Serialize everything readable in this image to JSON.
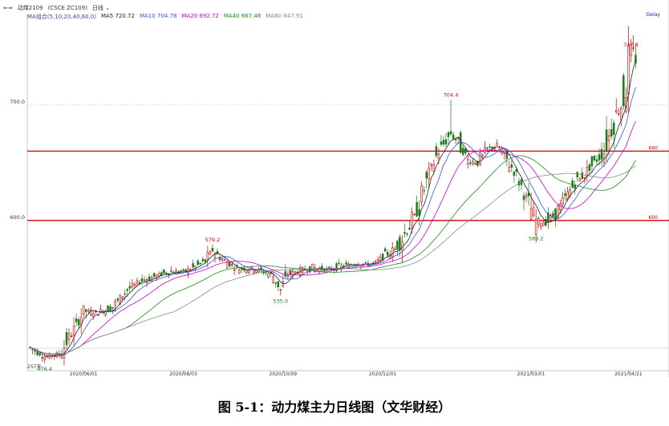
{
  "header": {
    "symbol": "动煤2109",
    "symbol_code": "(CSCE ZC109)",
    "period": "日线",
    "dropdown_icon": "chevron-down-icon"
  },
  "ma_legend": {
    "label": "MA组合(5,10,20,40,60,0)",
    "items": [
      {
        "text": "MA5 720.72",
        "color": "#222222"
      },
      {
        "text": "MA10 704.78",
        "color": "#3355dd"
      },
      {
        "text": "MA20 692.72",
        "color": "#cc00cc"
      },
      {
        "text": "MA40 667.48",
        "color": "#228822"
      },
      {
        "text": "MA60 647.91",
        "color": "#888888"
      }
    ]
  },
  "delay_label": "Delay",
  "bottom_left_label": "257天",
  "caption": "图 5-1：动力煤主力日线图（文华财经）",
  "chart_data": {
    "type": "candlestick",
    "ylim": [
      470,
      770
    ],
    "y_ticks": [
      "700.0",
      "600.0"
    ],
    "y_tick_values": [
      700,
      600
    ],
    "x_tick_labels": [
      "2020/06/01",
      "2020/08/03",
      "2020/10/09",
      "2020/12/01",
      "2021/03/01",
      "2021/04/21"
    ],
    "x_tick_index": [
      22,
      63,
      104,
      145,
      206,
      246
    ],
    "n_bars": 250,
    "hlines": [
      {
        "value": 660,
        "label": "660",
        "color": "#cc0000"
      },
      {
        "value": 600,
        "label": "600",
        "color": "#cc0000"
      }
    ],
    "annotations": [
      {
        "text": "476.4",
        "index": 6,
        "value": 476.4,
        "pos": "below",
        "color": "#1a7a1a"
      },
      {
        "text": "579.2",
        "index": 75,
        "value": 579.2,
        "pos": "above",
        "color": "#cc0000"
      },
      {
        "text": "535.0",
        "index": 103,
        "value": 535.0,
        "pos": "below",
        "color": "#1a7a1a"
      },
      {
        "text": "704.4",
        "index": 173,
        "value": 704.4,
        "pos": "above",
        "color": "#cc0000"
      },
      {
        "text": "589.2",
        "index": 208,
        "value": 589.2,
        "pos": "below",
        "color": "#1a7a1a"
      },
      {
        "text": "747.8",
        "index": 247,
        "value": 747.8,
        "pos": "above",
        "color": "#cc0000"
      }
    ],
    "close_anchors": [
      [
        0,
        490
      ],
      [
        6,
        482
      ],
      [
        12,
        484
      ],
      [
        18,
        505
      ],
      [
        22,
        522
      ],
      [
        28,
        520
      ],
      [
        34,
        525
      ],
      [
        40,
        540
      ],
      [
        46,
        548
      ],
      [
        52,
        552
      ],
      [
        58,
        556
      ],
      [
        63,
        555
      ],
      [
        68,
        560
      ],
      [
        72,
        565
      ],
      [
        75,
        574
      ],
      [
        80,
        565
      ],
      [
        86,
        558
      ],
      [
        92,
        558
      ],
      [
        97,
        555
      ],
      [
        100,
        552
      ],
      [
        103,
        540
      ],
      [
        106,
        553
      ],
      [
        110,
        556
      ],
      [
        116,
        559
      ],
      [
        122,
        557
      ],
      [
        128,
        560
      ],
      [
        134,
        563
      ],
      [
        138,
        562
      ],
      [
        142,
        563
      ],
      [
        145,
        568
      ],
      [
        150,
        575
      ],
      [
        155,
        592
      ],
      [
        160,
        612
      ],
      [
        164,
        640
      ],
      [
        168,
        660
      ],
      [
        173,
        675
      ],
      [
        176,
        668
      ],
      [
        180,
        652
      ],
      [
        184,
        650
      ],
      [
        188,
        662
      ],
      [
        192,
        665
      ],
      [
        196,
        652
      ],
      [
        200,
        640
      ],
      [
        204,
        620
      ],
      [
        208,
        600
      ],
      [
        212,
        598
      ],
      [
        216,
        605
      ],
      [
        220,
        620
      ],
      [
        224,
        632
      ],
      [
        228,
        640
      ],
      [
        232,
        650
      ],
      [
        236,
        660
      ],
      [
        240,
        685
      ],
      [
        244,
        705
      ],
      [
        247,
        747.8
      ],
      [
        249,
        740
      ]
    ],
    "series": [
      {
        "name": "MA5",
        "period": 5,
        "color": "#222222"
      },
      {
        "name": "MA10",
        "period": 10,
        "color": "#3355dd"
      },
      {
        "name": "MA20",
        "period": 20,
        "color": "#cc00cc"
      },
      {
        "name": "MA40",
        "period": 40,
        "color": "#228822"
      },
      {
        "name": "MA60",
        "period": 60,
        "color": "#888888"
      }
    ],
    "up_color": "#cc0000",
    "down_color": "#1a7a1a"
  }
}
